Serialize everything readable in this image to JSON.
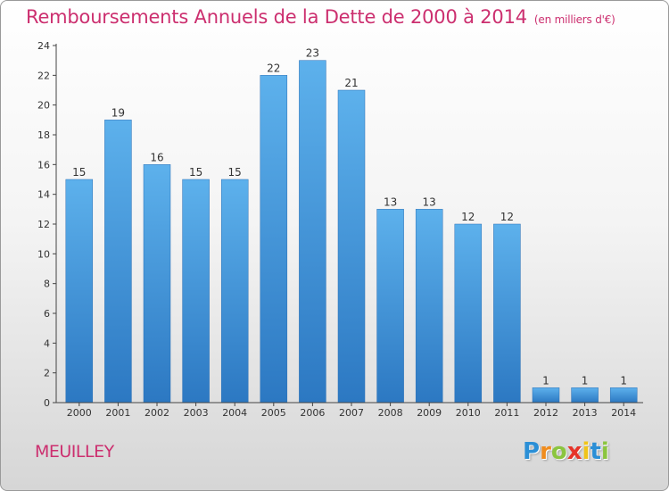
{
  "chart_data": {
    "type": "bar",
    "title": "Remboursements Annuels de la Dette de 2000 à 2014",
    "unit": "(en milliers d'€)",
    "categories": [
      "2000",
      "2001",
      "2002",
      "2003",
      "2004",
      "2005",
      "2006",
      "2007",
      "2008",
      "2009",
      "2010",
      "2011",
      "2012",
      "2013",
      "2014"
    ],
    "values": [
      15,
      19,
      16,
      15,
      15,
      22,
      23,
      21,
      13,
      13,
      12,
      12,
      1,
      1,
      1
    ],
    "ylim": [
      0,
      24
    ],
    "yticks": [
      0,
      2,
      4,
      6,
      8,
      10,
      12,
      14,
      16,
      18,
      20,
      22,
      24
    ],
    "grid": false,
    "legend": "none",
    "bar_color": "#3d8fd9"
  },
  "commune": "MEUILLEY",
  "brand": {
    "letters": [
      "P",
      "r",
      "o",
      "x",
      "i",
      "t",
      "i"
    ],
    "colors": [
      "#2b8fd6",
      "#f08c1e",
      "#8bc53f",
      "#e6342a",
      "#f0c419",
      "#2b8fd6",
      "#8bc53f"
    ]
  }
}
